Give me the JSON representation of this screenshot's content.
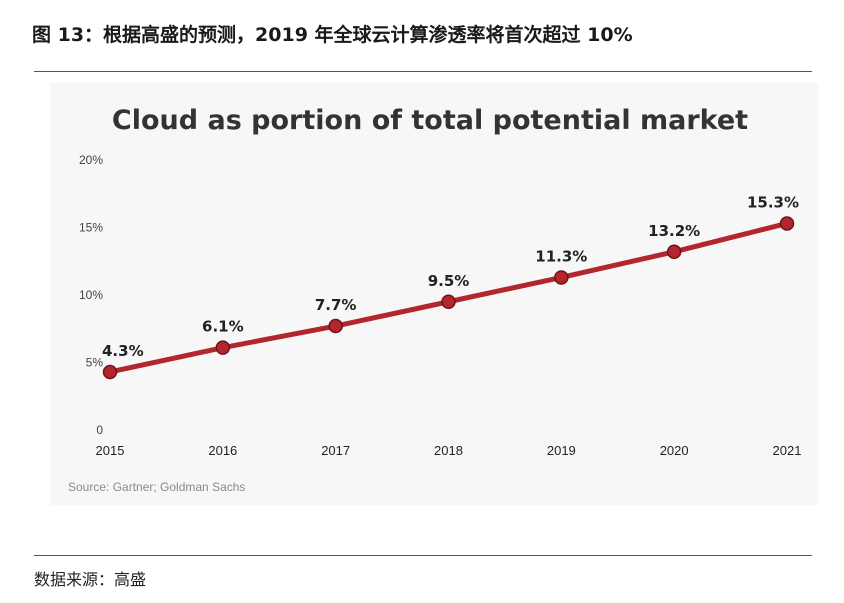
{
  "figure_title": "图 13：根据高盛的预测，2019 年全球云计算渗透率将首次超过 10%",
  "data_source": "数据来源：高盛",
  "chart_data": {
    "type": "line",
    "title": "Cloud as portion of total potential market",
    "x": [
      "2015",
      "2016",
      "2017",
      "2018",
      "2019",
      "2020",
      "2021"
    ],
    "series": [
      {
        "values": [
          4.3,
          6.1,
          7.7,
          9.5,
          11.3,
          13.2,
          15.3
        ]
      }
    ],
    "data_labels": [
      "4.3%",
      "6.1%",
      "7.7%",
      "9.5%",
      "11.3%",
      "13.2%",
      "15.3%"
    ],
    "yticks": [
      "0",
      "5%",
      "10%",
      "15%",
      "20%"
    ],
    "ytick_values": [
      0,
      5,
      10,
      15,
      20
    ],
    "ylim": [
      0,
      20
    ],
    "grid": false,
    "source_note": "Source: Gartner; Goldman Sachs",
    "colors": {
      "line": "#b3262e",
      "marker_fill": "#b3262e",
      "marker_edge": "#6e1319"
    }
  }
}
